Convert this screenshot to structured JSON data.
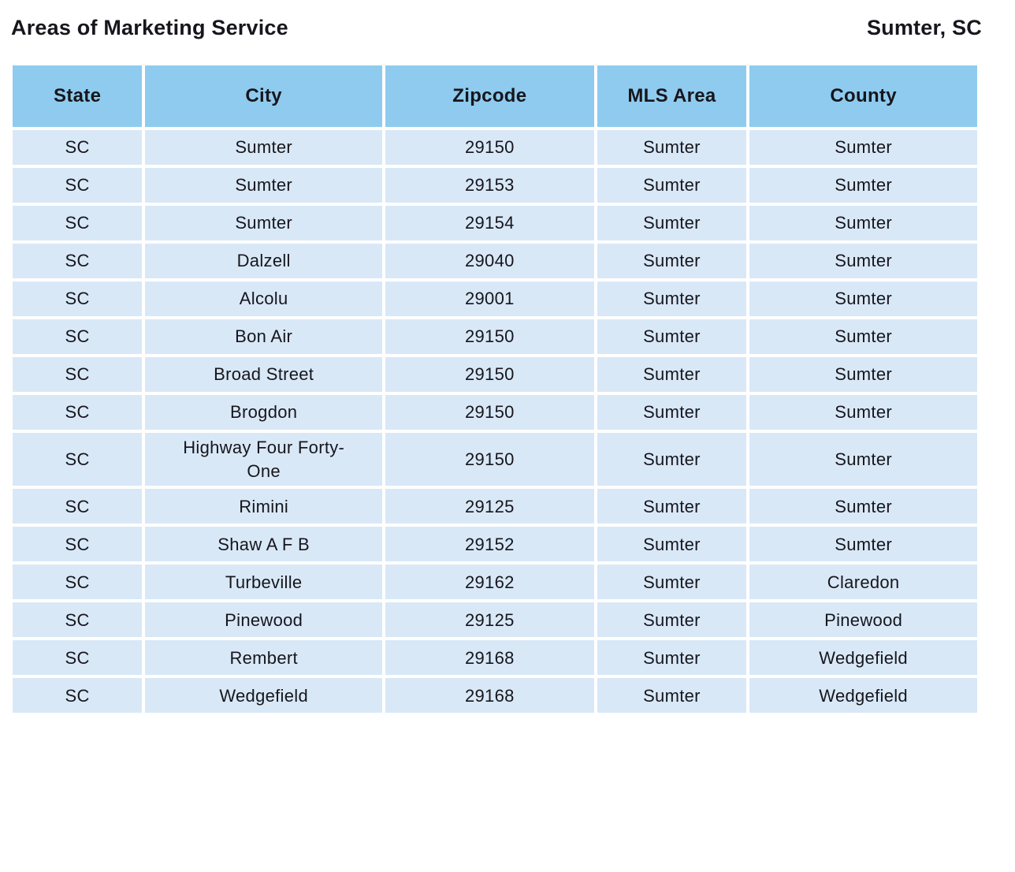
{
  "header": {
    "title": "Areas of Marketing Service",
    "location": "Sumter, SC"
  },
  "table": {
    "columns": [
      "State",
      "City",
      "Zipcode",
      "MLS Area",
      "County"
    ],
    "rows": [
      [
        "SC",
        "Sumter",
        "29150",
        "Sumter",
        "Sumter"
      ],
      [
        "SC",
        "Sumter",
        "29153",
        "Sumter",
        "Sumter"
      ],
      [
        "SC",
        "Sumter",
        "29154",
        "Sumter",
        "Sumter"
      ],
      [
        "SC",
        "Dalzell",
        "29040",
        "Sumter",
        "Sumter"
      ],
      [
        "SC",
        "Alcolu",
        "29001",
        "Sumter",
        "Sumter"
      ],
      [
        "SC",
        "Bon Air",
        "29150",
        "Sumter",
        "Sumter"
      ],
      [
        "SC",
        "Broad Street",
        "29150",
        "Sumter",
        "Sumter"
      ],
      [
        "SC",
        "Brogdon",
        "29150",
        "Sumter",
        "Sumter"
      ],
      [
        "SC",
        "Highway Four Forty-One",
        "29150",
        "Sumter",
        "Sumter"
      ],
      [
        "SC",
        "Rimini",
        "29125",
        "Sumter",
        "Sumter"
      ],
      [
        "SC",
        "Shaw A F B",
        "29152",
        "Sumter",
        "Sumter"
      ],
      [
        "SC",
        "Turbeville",
        "29162",
        "Sumter",
        "Claredon"
      ],
      [
        "SC",
        "Pinewood",
        "29125",
        "Sumter",
        "Pinewood"
      ],
      [
        "SC",
        "Rembert",
        "29168",
        "Sumter",
        "Wedgefield"
      ],
      [
        "SC",
        "Wedgefield",
        "29168",
        "Sumter",
        "Wedgefield"
      ]
    ]
  },
  "colors": {
    "header_bg": "#8fcbee",
    "row_bg": "#d9e8f7",
    "text": "#16161d"
  }
}
